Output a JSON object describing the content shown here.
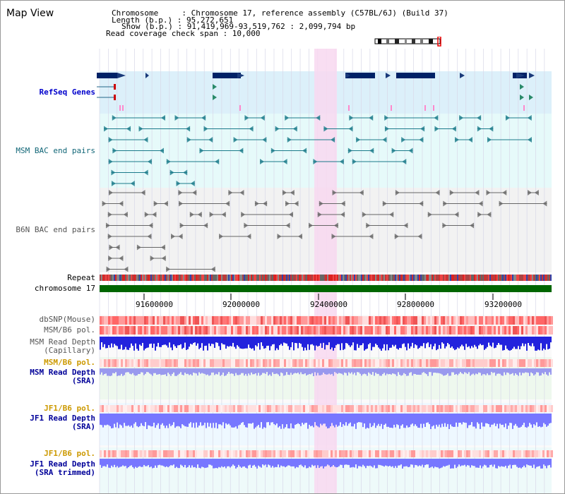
{
  "window": {
    "title": "Map View"
  },
  "header": {
    "lines": [
      "Chromosome     : Chromosome 17, reference assembly (C57BL/6J) (Build 37)",
      "Length (b.p.) : 95,272,651",
      "Show (b.p.) : 91,419,969-93,519,762 : 2,099,794 bp",
      "Read coverage check span : 10,000"
    ]
  },
  "tracks": {
    "refseq": "RefSeq Genes",
    "msm_bac": "MSM BAC end pairs",
    "b6n_bac": "B6N BAC end pairs",
    "repeat": "Repeat",
    "chromosome": "chromosome 17",
    "dbsnp": "dbSNP(Mouse)",
    "msm_b6_pol": "MSM/B6 pol.",
    "msm_depth_cap_1": "MSM Read Depth",
    "msm_depth_cap_2": "(Capillary)",
    "msm_b6_pol_2": "MSM/B6 pol.",
    "msm_depth_sra_1": "MSM Read Depth",
    "msm_depth_sra_2": "(SRA)",
    "jf1_pol_1": "JF1/B6 pol.",
    "jf1_depth_sra_1": "JF1 Read Depth",
    "jf1_depth_sra_2": "(SRA)",
    "jf1_pol_2": "JF1/B6 pol.",
    "jf1_depth_trim_1": "JF1 Read Depth",
    "jf1_depth_trim_2": "(SRA trimmed)"
  },
  "axis": {
    "ticks": [
      "91600000",
      "92000000",
      "92400000",
      "92800000",
      "93200000"
    ]
  },
  "colors": {
    "refseq_bg": "#dcf0fa",
    "msm_bg": "#e6fafa",
    "b6n_bg": "#f2f2f2",
    "highlight": "#f8d8f0",
    "chromosome": "#006600",
    "depth_msm": "#2222dd",
    "depth_sra": "#9999ee",
    "jf1_depth": "#7777ff"
  }
}
